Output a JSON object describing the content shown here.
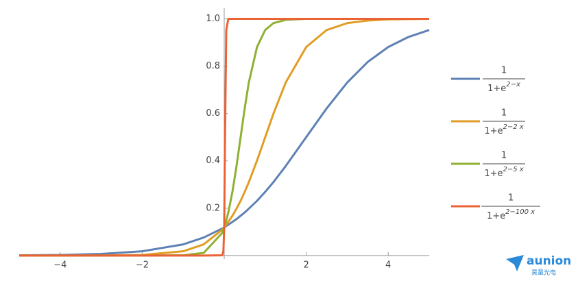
{
  "chart_data": {
    "type": "line",
    "x": [
      -5,
      -4,
      -3,
      -2,
      -1,
      -0.5,
      -0.05,
      -0.02,
      0,
      0.02,
      0.05,
      0.1,
      0.2,
      0.3,
      0.4,
      0.5,
      0.6,
      0.8,
      1,
      1.2,
      1.5,
      2,
      2.5,
      3,
      3.5,
      4,
      4.5,
      5
    ],
    "series": [
      {
        "name": {
          "numerator": "1",
          "denominator": "1+e",
          "exponent": "2−x"
        },
        "color": "#5e81b5",
        "values": [
          0.001,
          0.0025,
          0.0067,
          0.018,
          0.047,
          0.076,
          0.114,
          0.117,
          0.119,
          0.121,
          0.125,
          0.13,
          0.142,
          0.154,
          0.168,
          0.182,
          0.198,
          0.231,
          0.269,
          0.31,
          0.378,
          0.5,
          0.622,
          0.731,
          0.818,
          0.881,
          0.924,
          0.953
        ]
      },
      {
        "name": {
          "numerator": "1",
          "denominator": "1+e",
          "exponent": "2−2 x"
        },
        "color": "#e19c24",
        "values": [
          0,
          0,
          0.0003,
          0.0025,
          0.018,
          0.047,
          0.109,
          0.115,
          0.119,
          0.123,
          0.13,
          0.142,
          0.168,
          0.198,
          0.231,
          0.269,
          0.31,
          0.401,
          0.5,
          0.599,
          0.731,
          0.881,
          0.953,
          0.982,
          0.993,
          0.998,
          0.999,
          1
        ]
      },
      {
        "name": {
          "numerator": "1",
          "denominator": "1+e",
          "exponent": "2−5 x"
        },
        "color": "#8fb032",
        "values": [
          0,
          0,
          0,
          0,
          0.001,
          0.011,
          0.095,
          0.109,
          0.119,
          0.13,
          0.148,
          0.182,
          0.269,
          0.378,
          0.5,
          0.622,
          0.731,
          0.881,
          0.953,
          0.982,
          0.996,
          1,
          1,
          1,
          1,
          1,
          1,
          1
        ]
      },
      {
        "name": {
          "numerator": "1",
          "denominator": "1+e",
          "exponent": "2−100 x"
        },
        "color": "#eb6235",
        "values": [
          0,
          0,
          0,
          0,
          0,
          0,
          0.001,
          0.018,
          0.119,
          0.5,
          0.953,
          1,
          1,
          1,
          1,
          1,
          1,
          1,
          1,
          1,
          1,
          1,
          1,
          1,
          1,
          1,
          1,
          1
        ]
      }
    ],
    "xlim": [
      -5,
      5
    ],
    "ylim": [
      -0.015,
      1.045
    ],
    "xticks": [
      {
        "value": -4,
        "label": "−4"
      },
      {
        "value": -2,
        "label": "−2"
      },
      2,
      4
    ],
    "yticks": [
      0.2,
      0.4,
      0.6,
      0.8,
      {
        "value": 1,
        "label": "1.0"
      }
    ]
  },
  "watermark": {
    "text": "aunion",
    "subtext": "昊量光电"
  }
}
